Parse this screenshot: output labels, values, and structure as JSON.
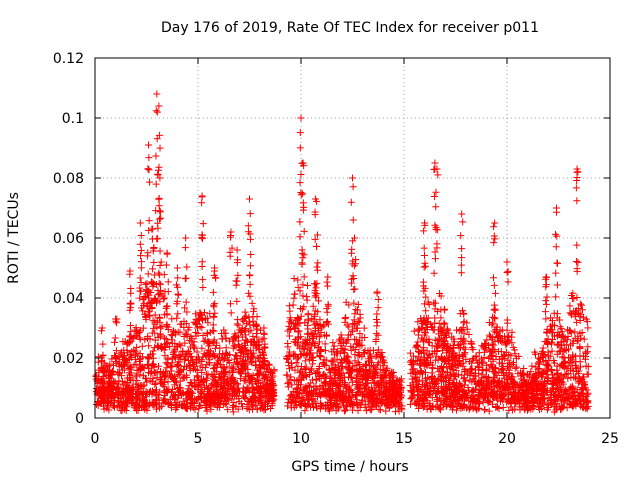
{
  "chart_data": {
    "type": "scatter",
    "title": "Day 176 of 2019, Rate Of TEC Index for receiver p011",
    "xlabel": "GPS time / hours",
    "ylabel": "ROTI / TECUs",
    "xlim": [
      0,
      25
    ],
    "ylim": [
      0,
      0.12
    ],
    "x_ticks": [
      0,
      5,
      10,
      15,
      20,
      25
    ],
    "x_tick_labels": [
      "0",
      "5",
      "10",
      "15",
      "20",
      "25"
    ],
    "y_ticks": [
      0,
      0.02,
      0.04,
      0.06,
      0.08,
      0.1,
      0.12
    ],
    "y_tick_labels": [
      "0",
      "0.02",
      "0.04",
      "0.06",
      "0.08",
      "0.1",
      "0.12"
    ],
    "grid": true,
    "marker": "+",
    "marker_color": "#ff0000",
    "coverage_gaps_hours": [
      [
        8.7,
        9.3
      ],
      [
        14.9,
        15.3
      ]
    ],
    "peaks": [
      {
        "x": 0.35,
        "y": 0.03
      },
      {
        "x": 1.0,
        "y": 0.033
      },
      {
        "x": 1.7,
        "y": 0.049
      },
      {
        "x": 2.2,
        "y": 0.065
      },
      {
        "x": 2.6,
        "y": 0.091
      },
      {
        "x": 2.8,
        "y": 0.063
      },
      {
        "x": 3.0,
        "y": 0.108
      },
      {
        "x": 3.1,
        "y": 0.104
      },
      {
        "x": 3.15,
        "y": 0.08
      },
      {
        "x": 3.5,
        "y": 0.055
      },
      {
        "x": 4.0,
        "y": 0.05
      },
      {
        "x": 4.4,
        "y": 0.06
      },
      {
        "x": 5.2,
        "y": 0.074
      },
      {
        "x": 5.8,
        "y": 0.05
      },
      {
        "x": 6.6,
        "y": 0.062
      },
      {
        "x": 6.9,
        "y": 0.056
      },
      {
        "x": 7.5,
        "y": 0.073
      },
      {
        "x": 8.2,
        "y": 0.03
      },
      {
        "x": 10.0,
        "y": 0.1
      },
      {
        "x": 10.1,
        "y": 0.085
      },
      {
        "x": 10.7,
        "y": 0.073
      },
      {
        "x": 10.8,
        "y": 0.061
      },
      {
        "x": 11.3,
        "y": 0.047
      },
      {
        "x": 12.5,
        "y": 0.08
      },
      {
        "x": 12.6,
        "y": 0.06
      },
      {
        "x": 13.7,
        "y": 0.042
      },
      {
        "x": 16.0,
        "y": 0.065
      },
      {
        "x": 16.5,
        "y": 0.085
      },
      {
        "x": 16.6,
        "y": 0.083
      },
      {
        "x": 17.8,
        "y": 0.068
      },
      {
        "x": 19.4,
        "y": 0.065
      },
      {
        "x": 20.0,
        "y": 0.052
      },
      {
        "x": 21.9,
        "y": 0.047
      },
      {
        "x": 22.4,
        "y": 0.07
      },
      {
        "x": 23.4,
        "y": 0.083
      }
    ]
  }
}
